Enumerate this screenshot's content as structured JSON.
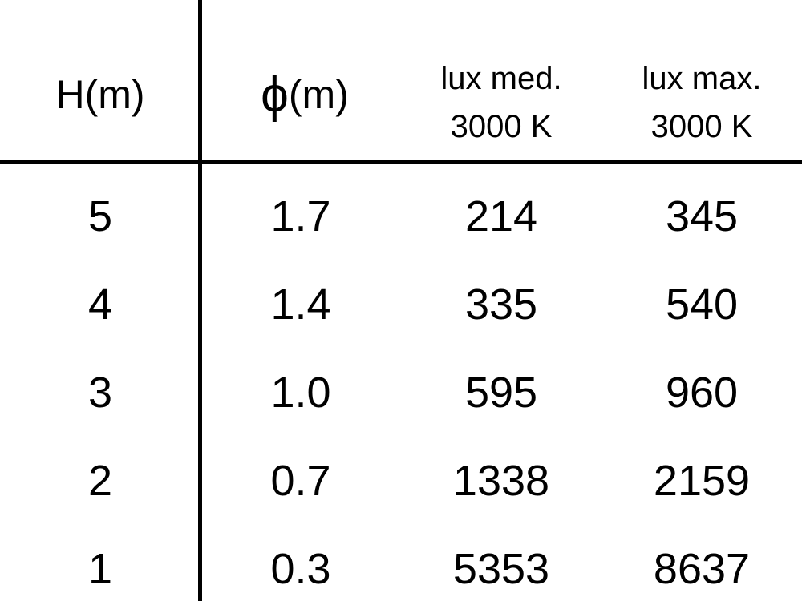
{
  "table": {
    "headers": [
      {
        "line1": "H(m)"
      },
      {
        "symbol": "ϕ",
        "unit": "(m)"
      },
      {
        "line1": "lux med.",
        "line2": "3000 K"
      },
      {
        "line1": "lux max.",
        "line2": "3000 K"
      }
    ],
    "rows": [
      [
        "5",
        "1.7",
        "214",
        "345"
      ],
      [
        "4",
        "1.4",
        "335",
        "540"
      ],
      [
        "3",
        "1.0",
        "595",
        "960"
      ],
      [
        "2",
        "0.7",
        "1338",
        "2159"
      ],
      [
        "1",
        "0.3",
        "5353",
        "8637"
      ]
    ]
  }
}
